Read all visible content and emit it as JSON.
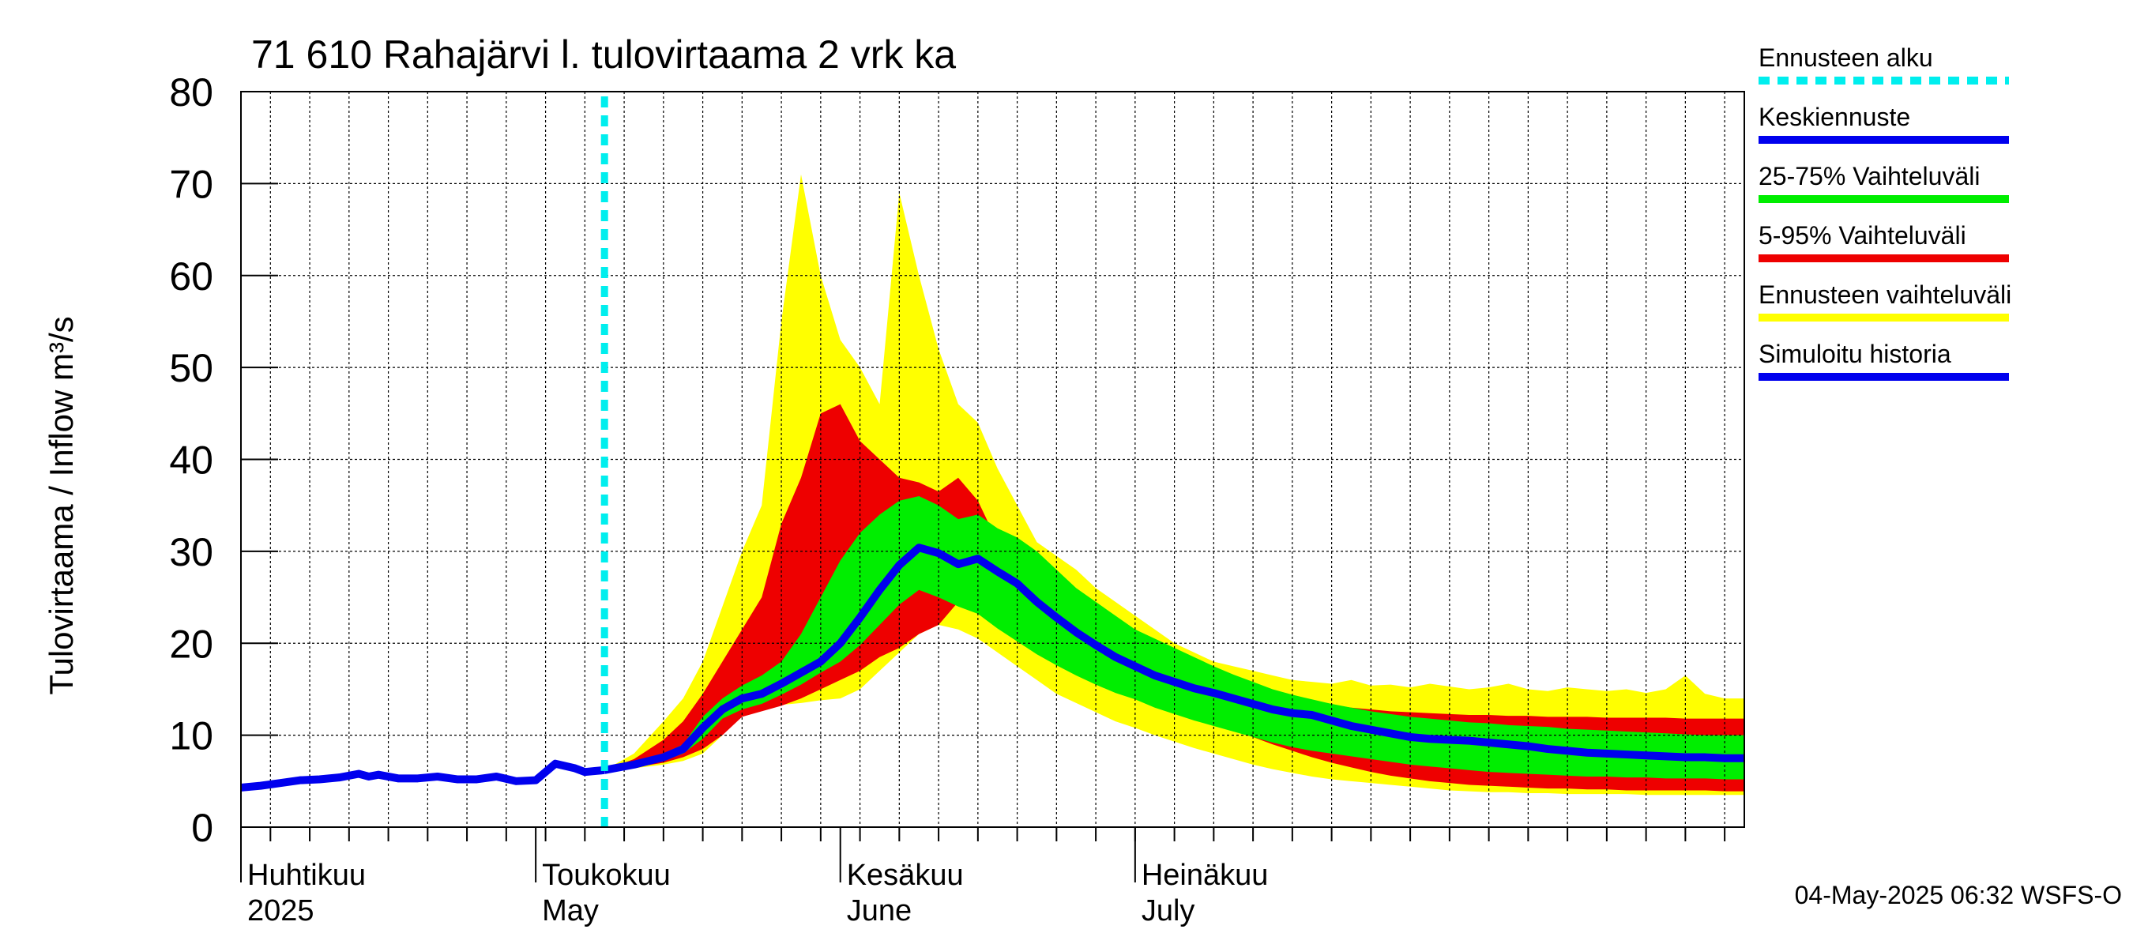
{
  "chart_data": {
    "type": "area",
    "title": "71 610 Rahajärvi l. tulovirtaama 2 vrk ka",
    "ylabel": "Tulovirtaama / Inflow     m³/s",
    "xlabel": "",
    "ylim": [
      0,
      80
    ],
    "yticks": [
      0,
      10,
      20,
      30,
      40,
      50,
      60,
      70,
      80
    ],
    "x_unit": "day of year 2025",
    "xlim": [
      91,
      244
    ],
    "forecast_start_day": 128,
    "month_labels": [
      {
        "day": 91,
        "fi": "Huhtikuu",
        "en": "2025"
      },
      {
        "day": 121,
        "fi": "Toukokuu",
        "en": "May"
      },
      {
        "day": 152,
        "fi": "Kesäkuu",
        "en": "June"
      },
      {
        "day": 182,
        "fi": "Heinäkuu",
        "en": "July"
      }
    ],
    "series": [
      {
        "name": "Simuloitu historia",
        "color": "#0000ee",
        "x": [
          91,
          93,
          95,
          97,
          99,
          101,
          103,
          104,
          105,
          107,
          109,
          111,
          113,
          115,
          117,
          119,
          121,
          122,
          123,
          125,
          126,
          127,
          128
        ],
        "y": [
          4.3,
          4.5,
          4.8,
          5.1,
          5.2,
          5.4,
          5.8,
          5.5,
          5.7,
          5.3,
          5.3,
          5.5,
          5.2,
          5.2,
          5.5,
          5.0,
          5.1,
          6.0,
          6.9,
          6.4,
          6.0,
          6.1,
          6.2
        ]
      },
      {
        "name": "Keskiennuste",
        "color": "#0000ee",
        "x": [
          128,
          131,
          134,
          136,
          138,
          140,
          142,
          144,
          146,
          148,
          150,
          152,
          154,
          156,
          158,
          160,
          162,
          164,
          166,
          168,
          170,
          172,
          174,
          176,
          178,
          180,
          182,
          184,
          186,
          188,
          190,
          192,
          194,
          196,
          198,
          200,
          202,
          204,
          206,
          208,
          210,
          212,
          214,
          216,
          218,
          220,
          222,
          224,
          226,
          228,
          230,
          232,
          234,
          236,
          238,
          240,
          242,
          244
        ],
        "y": [
          6.2,
          6.8,
          7.6,
          8.5,
          10.8,
          12.8,
          14.0,
          14.5,
          15.6,
          16.8,
          18.0,
          20.0,
          22.8,
          25.8,
          28.5,
          30.4,
          29.8,
          28.6,
          29.2,
          27.8,
          26.5,
          24.5,
          22.8,
          21.2,
          19.8,
          18.5,
          17.5,
          16.5,
          15.8,
          15.1,
          14.6,
          14.0,
          13.4,
          12.8,
          12.4,
          12.2,
          11.6,
          11.0,
          10.6,
          10.2,
          9.8,
          9.6,
          9.5,
          9.4,
          9.2,
          9.0,
          8.8,
          8.5,
          8.3,
          8.1,
          8.0,
          7.9,
          7.8,
          7.7,
          7.6,
          7.6,
          7.5,
          7.5
        ]
      },
      {
        "name": "25-75% Vaihteluväli",
        "color": "#00ee00",
        "x": [
          128,
          131,
          134,
          136,
          138,
          140,
          142,
          144,
          146,
          148,
          150,
          152,
          154,
          156,
          158,
          160,
          162,
          164,
          166,
          168,
          170,
          172,
          174,
          176,
          178,
          180,
          182,
          184,
          186,
          188,
          190,
          192,
          194,
          196,
          198,
          200,
          202,
          204,
          206,
          208,
          210,
          212,
          214,
          216,
          218,
          220,
          222,
          224,
          226,
          228,
          230,
          232,
          234,
          236,
          238,
          240,
          242,
          244
        ],
        "low": [
          6.2,
          6.6,
          7.2,
          8.0,
          9.6,
          11.8,
          12.8,
          13.4,
          14.4,
          15.5,
          16.8,
          18.0,
          19.8,
          22.0,
          24.2,
          25.8,
          25.0,
          24.0,
          23.2,
          21.6,
          20.2,
          18.8,
          17.6,
          16.5,
          15.5,
          14.6,
          13.9,
          13.0,
          12.3,
          11.6,
          11.0,
          10.4,
          9.8,
          9.2,
          8.7,
          8.3,
          8.0,
          7.7,
          7.4,
          7.1,
          6.8,
          6.6,
          6.4,
          6.2,
          6.0,
          5.9,
          5.8,
          5.7,
          5.6,
          5.5,
          5.5,
          5.4,
          5.4,
          5.3,
          5.3,
          5.3,
          5.2,
          5.2
        ],
        "high": [
          6.2,
          7.0,
          8.0,
          9.0,
          12.0,
          14.0,
          15.4,
          16.5,
          18.0,
          21.0,
          25.0,
          29.0,
          32.0,
          34.0,
          35.5,
          36.0,
          35.0,
          33.5,
          34.0,
          32.5,
          31.5,
          30.0,
          28.0,
          26.0,
          24.5,
          23.0,
          21.5,
          20.5,
          19.5,
          18.5,
          17.5,
          16.6,
          15.8,
          15.0,
          14.4,
          13.9,
          13.4,
          13.0,
          12.6,
          12.3,
          12.0,
          11.8,
          11.6,
          11.4,
          11.3,
          11.1,
          11.0,
          10.9,
          10.7,
          10.6,
          10.5,
          10.4,
          10.3,
          10.2,
          10.1,
          10.0,
          10.0,
          10.0
        ]
      },
      {
        "name": "5-95% Vaihteluväli",
        "color": "#ee0000",
        "x": [
          128,
          131,
          134,
          136,
          138,
          140,
          142,
          144,
          146,
          148,
          150,
          152,
          154,
          156,
          158,
          160,
          162,
          164,
          166,
          168,
          170,
          172,
          174,
          176,
          178,
          180,
          182,
          184,
          186,
          188,
          190,
          192,
          194,
          196,
          198,
          200,
          202,
          204,
          206,
          208,
          210,
          212,
          214,
          216,
          218,
          220,
          222,
          224,
          226,
          228,
          230,
          232,
          234,
          236,
          238,
          240,
          242,
          244
        ],
        "low": [
          6.2,
          6.5,
          7.0,
          7.6,
          8.5,
          10.0,
          12.0,
          12.6,
          13.2,
          14.0,
          15.0,
          16.0,
          17.0,
          18.5,
          19.5,
          21.0,
          22.0,
          24.5,
          26.0,
          25.0,
          23.0,
          21.5,
          20.0,
          18.5,
          17.0,
          15.8,
          14.8,
          13.8,
          12.8,
          12.0,
          11.3,
          10.6,
          9.8,
          9.0,
          8.3,
          7.6,
          7.0,
          6.5,
          6.0,
          5.6,
          5.3,
          5.0,
          4.8,
          4.6,
          4.5,
          4.4,
          4.3,
          4.2,
          4.2,
          4.1,
          4.1,
          4.0,
          4.0,
          4.0,
          4.0,
          4.0,
          3.9,
          3.9
        ],
        "high": [
          6.2,
          7.4,
          9.5,
          11.5,
          14.5,
          18.0,
          21.5,
          25.0,
          33.0,
          38.0,
          45.0,
          46.0,
          42.0,
          40.0,
          38.0,
          37.5,
          36.5,
          38.0,
          35.5,
          31.0,
          28.0,
          26.0,
          24.5,
          23.5,
          22.0,
          20.5,
          19.5,
          18.5,
          17.5,
          16.8,
          16.0,
          15.4,
          14.8,
          14.3,
          13.9,
          13.6,
          13.3,
          13.0,
          12.8,
          12.6,
          12.5,
          12.4,
          12.3,
          12.2,
          12.2,
          12.1,
          12.1,
          12.0,
          12.0,
          12.0,
          11.9,
          11.9,
          11.9,
          11.9,
          11.8,
          11.8,
          11.8,
          11.8
        ]
      },
      {
        "name": "Ennusteen vaihteluväli",
        "color": "#ffff00",
        "x": [
          128,
          131,
          134,
          136,
          138,
          140,
          142,
          144,
          146,
          148,
          150,
          152,
          154,
          156,
          158,
          160,
          162,
          164,
          166,
          168,
          170,
          172,
          174,
          176,
          178,
          180,
          182,
          184,
          186,
          188,
          190,
          192,
          194,
          196,
          198,
          200,
          202,
          204,
          206,
          208,
          210,
          212,
          214,
          216,
          218,
          220,
          222,
          224,
          226,
          228,
          230,
          232,
          234,
          236,
          238,
          240,
          242,
          244
        ],
        "low": [
          6.2,
          6.4,
          6.8,
          7.2,
          8.0,
          10.0,
          12.5,
          13.0,
          13.3,
          13.5,
          13.8,
          14.0,
          15.0,
          17.0,
          19.0,
          21.0,
          22.0,
          21.5,
          20.5,
          19.0,
          17.5,
          16.0,
          14.5,
          13.5,
          12.5,
          11.5,
          10.8,
          10.0,
          9.3,
          8.6,
          8.0,
          7.4,
          6.8,
          6.3,
          5.9,
          5.5,
          5.2,
          5.0,
          4.8,
          4.6,
          4.4,
          4.2,
          4.0,
          3.9,
          3.8,
          3.8,
          3.7,
          3.7,
          3.6,
          3.6,
          3.6,
          3.6,
          3.5,
          3.5,
          3.5,
          3.5,
          3.5,
          3.5
        ],
        "high": [
          6.2,
          8.0,
          11.5,
          14.0,
          18.0,
          24.0,
          30.0,
          35.0,
          55.0,
          71.0,
          60.0,
          53.0,
          50.0,
          46.0,
          69.0,
          60.0,
          52.0,
          46.0,
          44.0,
          39.0,
          35.0,
          31.0,
          29.5,
          28.0,
          26.0,
          24.5,
          23.0,
          21.5,
          20.0,
          19.0,
          18.0,
          17.5,
          17.0,
          16.5,
          16.0,
          15.8,
          15.6,
          16.0,
          15.4,
          15.5,
          15.2,
          15.6,
          15.3,
          15.0,
          15.2,
          15.6,
          15.0,
          14.8,
          15.2,
          15.0,
          14.8,
          15.0,
          14.6,
          15.0,
          16.5,
          14.5,
          14.0,
          14.0
        ]
      }
    ],
    "legend": [
      {
        "label": "Ennusteen alku",
        "color": "#00eeee",
        "style": "dashed"
      },
      {
        "label": "Keskiennuste",
        "color": "#0000ee",
        "style": "solid"
      },
      {
        "label": "25-75% Vaihteluväli",
        "color": "#00ee00",
        "style": "solid"
      },
      {
        "label": "5-95% Vaihteluväli",
        "color": "#ee0000",
        "style": "solid"
      },
      {
        "label": "Ennusteen vaihteluväli",
        "color": "#ffff00",
        "style": "solid"
      },
      {
        "label": "Simuloitu historia",
        "color": "#0000ee",
        "style": "solid"
      }
    ],
    "legend_position": "right",
    "grid": true,
    "footer": "04-May-2025 06:32 WSFS-O"
  }
}
